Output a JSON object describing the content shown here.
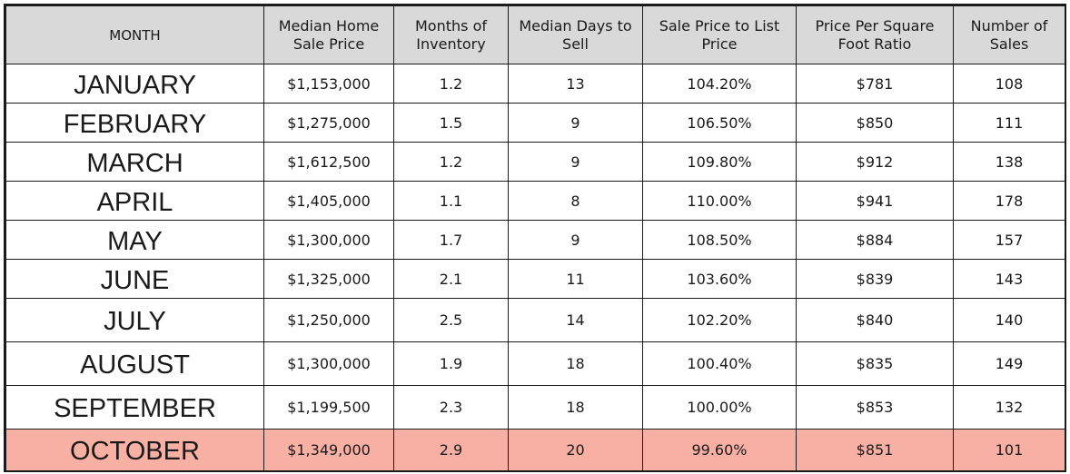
{
  "chart_data": {
    "type": "table",
    "highlight_color": "#f8b0a4",
    "header_color": "#d9d9d9",
    "columns": [
      "MONTH",
      "Median Home Sale Price",
      "Months of Inventory",
      "Median Days to Sell",
      "Sale Price to List Price",
      "Price Per Square Foot Ratio",
      "Number of Sales"
    ],
    "rows": [
      {
        "month": "JANUARY",
        "price": "$1,153,000",
        "inventory": "1.2",
        "days": "13",
        "ratio": "104.20%",
        "ppsf": "$781",
        "sales": "108",
        "highlight": false
      },
      {
        "month": "FEBRUARY",
        "price": "$1,275,000",
        "inventory": "1.5",
        "days": "9",
        "ratio": "106.50%",
        "ppsf": "$850",
        "sales": "111",
        "highlight": false
      },
      {
        "month": "MARCH",
        "price": "$1,612,500",
        "inventory": "1.2",
        "days": "9",
        "ratio": "109.80%",
        "ppsf": "$912",
        "sales": "138",
        "highlight": false
      },
      {
        "month": "APRIL",
        "price": "$1,405,000",
        "inventory": "1.1",
        "days": "8",
        "ratio": "110.00%",
        "ppsf": "$941",
        "sales": "178",
        "highlight": false
      },
      {
        "month": "MAY",
        "price": "$1,300,000",
        "inventory": "1.7",
        "days": "9",
        "ratio": "108.50%",
        "ppsf": "$884",
        "sales": "157",
        "highlight": false
      },
      {
        "month": "JUNE",
        "price": "$1,325,000",
        "inventory": "2.1",
        "days": "11",
        "ratio": "103.60%",
        "ppsf": "$839",
        "sales": "143",
        "highlight": false
      },
      {
        "month": "JULY",
        "price": "$1,250,000",
        "inventory": "2.5",
        "days": "14",
        "ratio": "102.20%",
        "ppsf": "$840",
        "sales": "140",
        "highlight": false
      },
      {
        "month": "AUGUST",
        "price": "$1,300,000",
        "inventory": "1.9",
        "days": "18",
        "ratio": "100.40%",
        "ppsf": "$835",
        "sales": "149",
        "highlight": false
      },
      {
        "month": "SEPTEMBER",
        "price": "$1,199,500",
        "inventory": "2.3",
        "days": "18",
        "ratio": "100.00%",
        "ppsf": "$853",
        "sales": "132",
        "highlight": false
      },
      {
        "month": "OCTOBER",
        "price": "$1,349,000",
        "inventory": "2.9",
        "days": "20",
        "ratio": "99.60%",
        "ppsf": "$851",
        "sales": "101",
        "highlight": true
      }
    ]
  }
}
